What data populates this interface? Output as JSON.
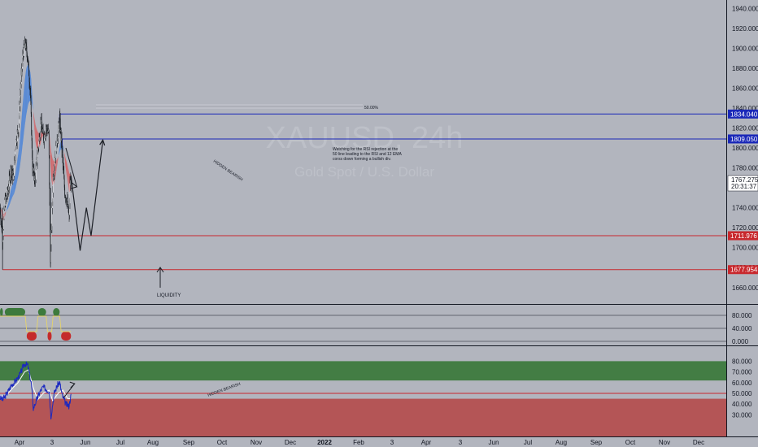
{
  "colors": {
    "background": "#b2b5be",
    "axis_text": "#131722",
    "candle": "#1f2328",
    "ribbon_bull": "#3b7ddd",
    "ribbon_bear": "#d9585b",
    "resistance_line": "#1a28b8",
    "support_line": "#c8282d",
    "rsi_line": "#1a28c0",
    "ema_line": "#ffffff",
    "osc_bull": "#3d7a3d",
    "osc_bear": "#c42b2b",
    "osc_zone_bear": "#b45050",
    "projection": "#1c1f26"
  },
  "watermark": {
    "symbol": "XAUUSD, 24h",
    "name": "Gold Spot / U.S. Dollar"
  },
  "price_axis": {
    "ticks": [
      "1940.000",
      "1920.000",
      "1900.000",
      "1880.000",
      "1860.000",
      "1840.000",
      "1820.000",
      "1800.000",
      "1780.000",
      "1760.000",
      "1740.000",
      "1720.000",
      "1700.000",
      "1680.000",
      "1660.000"
    ]
  },
  "price_tags": {
    "current_price": "1767.275",
    "countdown": "20:31:37",
    "level_1834": "1834.040",
    "level_1809": "1809.050",
    "level_1711": "1711.976",
    "level_1677": "1677.954"
  },
  "time_axis": {
    "ticks": [
      "Apr",
      "3",
      "Jun",
      "Jul",
      "Aug",
      "Sep",
      "Oct",
      "Nov",
      "Dec",
      "2022",
      "Feb",
      "3",
      "Apr",
      "3",
      "Jun",
      "Jul",
      "Aug",
      "Sep",
      "Oct",
      "Nov",
      "Dec"
    ]
  },
  "annotations": {
    "fib_label": "50.00%",
    "note_line1": "Watching for the RSI rejection at the",
    "note_line2": "50 line leading to the RSI and 12 EMA",
    "note_line3": "corss down forming a bullish div.",
    "hidden_bearish_price": "HIDDEN BEARISH",
    "hidden_bearish_rsi": "HIDDEN BEARISH",
    "liquidity": "LIQUIDITY"
  },
  "osc_axis": {
    "ticks": [
      "80.000",
      "40.000",
      "0.000"
    ]
  },
  "rsi_axis": {
    "ticks": [
      "80.000",
      "70.000",
      "60.000",
      "50.000",
      "40.000",
      "30.000"
    ]
  },
  "chart_data": {
    "type": "candlestick",
    "symbol": "XAUUSD",
    "timeframe": "24h",
    "ylim": [
      1650,
      1948
    ],
    "price_path": [
      [
        "2021-03-24",
        1740
      ],
      [
        "2021-03-31",
        1710
      ],
      [
        "2021-04-06",
        1745
      ],
      [
        "2021-04-14",
        1755
      ],
      [
        "2021-04-22",
        1778
      ],
      [
        "2021-04-30",
        1770
      ],
      [
        "2021-05-06",
        1805
      ],
      [
        "2021-05-13",
        1820
      ],
      [
        "2021-05-20",
        1865
      ],
      [
        "2021-05-26",
        1895
      ],
      [
        "2021-06-01",
        1905
      ],
      [
        "2021-06-08",
        1890
      ],
      [
        "2021-06-15",
        1855
      ],
      [
        "2021-06-21",
        1780
      ],
      [
        "2021-06-28",
        1768
      ],
      [
        "2021-07-06",
        1800
      ],
      [
        "2021-07-14",
        1825
      ],
      [
        "2021-07-21",
        1810
      ],
      [
        "2021-07-28",
        1820
      ],
      [
        "2021-08-04",
        1815
      ],
      [
        "2021-08-09",
        1690
      ],
      [
        "2021-08-16",
        1770
      ],
      [
        "2021-08-23",
        1795
      ],
      [
        "2021-08-31",
        1820
      ],
      [
        "2021-09-03",
        1830
      ],
      [
        "2021-09-10",
        1795
      ],
      [
        "2021-09-17",
        1755
      ],
      [
        "2021-09-24",
        1745
      ],
      [
        "2021-09-29",
        1730
      ],
      [
        "2021-10-01",
        1762
      ],
      [
        "2021-10-04",
        1767.275
      ]
    ],
    "levels": [
      {
        "price": 1834.04,
        "role": "resistance"
      },
      {
        "price": 1809.05,
        "role": "resistance"
      },
      {
        "price": 1711.976,
        "role": "support"
      },
      {
        "price": 1677.954,
        "role": "support"
      }
    ],
    "fib_level": {
      "label": "50.00%",
      "price": 1843
    },
    "projection": [
      [
        "2021-10-04",
        1772
      ],
      [
        "2021-10-29",
        1697
      ],
      [
        "2021-11-15",
        1740
      ],
      [
        "2021-11-28",
        1712
      ],
      [
        "2021-12-30",
        1808
      ]
    ],
    "rsi": {
      "ylim": [
        20,
        82
      ],
      "midline": 50,
      "bull_zone": [
        62,
        80
      ],
      "bear_zone": [
        20,
        45
      ],
      "series": [
        [
          "2021-03-24",
          46
        ],
        [
          "2021-04-01",
          44
        ],
        [
          "2021-04-12",
          50
        ],
        [
          "2021-04-25",
          58
        ],
        [
          "2021-05-07",
          62
        ],
        [
          "2021-05-18",
          68
        ],
        [
          "2021-05-30",
          78
        ],
        [
          "2021-06-08",
          76
        ],
        [
          "2021-06-18",
          58
        ],
        [
          "2021-06-23",
          36
        ],
        [
          "2021-07-02",
          44
        ],
        [
          "2021-07-12",
          52
        ],
        [
          "2021-07-20",
          56
        ],
        [
          "2021-07-28",
          54
        ],
        [
          "2021-08-06",
          52
        ],
        [
          "2021-08-10",
          28
        ],
        [
          "2021-08-19",
          50
        ],
        [
          "2021-08-28",
          58
        ],
        [
          "2021-09-03",
          60
        ],
        [
          "2021-09-10",
          48
        ],
        [
          "2021-09-20",
          40
        ],
        [
          "2021-09-28",
          38
        ],
        [
          "2021-10-04",
          48
        ]
      ],
      "ema": [
        [
          "2021-03-24",
          48
        ],
        [
          "2021-04-08",
          47
        ],
        [
          "2021-04-25",
          54
        ],
        [
          "2021-05-12",
          60
        ],
        [
          "2021-05-30",
          70
        ],
        [
          "2021-06-10",
          72
        ],
        [
          "2021-06-22",
          56
        ],
        [
          "2021-07-05",
          44
        ],
        [
          "2021-07-20",
          50
        ],
        [
          "2021-08-05",
          53
        ],
        [
          "2021-08-15",
          43
        ],
        [
          "2021-08-30",
          50
        ],
        [
          "2021-09-12",
          53
        ],
        [
          "2021-09-25",
          45
        ],
        [
          "2021-10-04",
          45
        ]
      ]
    },
    "oscillator": {
      "ylim": [
        0,
        100
      ],
      "levels": [
        80,
        40,
        0
      ],
      "states": [
        [
          "2021-03-24",
          "2021-04-01",
          "bull"
        ],
        [
          "2021-04-06",
          "2021-06-01",
          "bull"
        ],
        [
          "2021-06-05",
          "2021-07-02",
          "bear"
        ],
        [
          "2021-07-06",
          "2021-07-28",
          "bull"
        ],
        [
          "2021-08-01",
          "2021-08-12",
          "bear"
        ],
        [
          "2021-08-16",
          "2021-09-03",
          "bull"
        ],
        [
          "2021-09-07",
          "2021-10-04",
          "bear"
        ]
      ]
    }
  }
}
